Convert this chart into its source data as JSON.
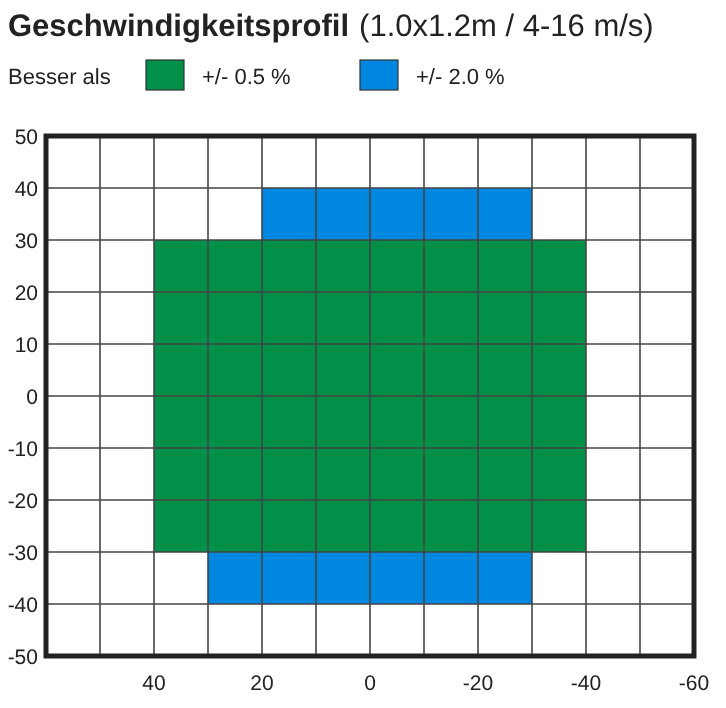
{
  "chart_data": {
    "type": "area",
    "title": "Geschwindigkeitsprofil",
    "subtitle": "(1.0x1.2m / 4-16 m/s)",
    "legend_title": "Besser als",
    "legend": "top",
    "grid": true,
    "xlim": [
      60,
      -60
    ],
    "xticks": [
      {
        "value": 50,
        "label": null
      },
      40,
      {
        "value": 30,
        "label": null
      },
      20,
      {
        "value": 10,
        "label": null
      },
      0,
      {
        "value": -10,
        "label": null
      },
      -20,
      {
        "value": -30,
        "label": null
      },
      -40,
      {
        "value": -50,
        "label": null
      },
      -60
    ],
    "ylim": [
      -50,
      50
    ],
    "yticks": [
      -50,
      -40,
      -30,
      -20,
      -10,
      0,
      10,
      20,
      30,
      40,
      50
    ],
    "series": [
      {
        "name": "+/- 2.0 %",
        "color": "#0088e0",
        "x": [
          20,
          20,
          -30,
          -30
        ],
        "values": [
          30,
          40,
          40,
          30
        ]
      },
      {
        "color": "#0088e0",
        "x": [
          30,
          30,
          -30,
          -30
        ],
        "values": [
          -40,
          -30,
          -30,
          -40
        ]
      },
      {
        "name": "+/- 0.5 %",
        "color": "#009048",
        "x": [
          40,
          40,
          -40,
          -40
        ],
        "values": [
          -30,
          30,
          30,
          -30
        ]
      }
    ]
  }
}
